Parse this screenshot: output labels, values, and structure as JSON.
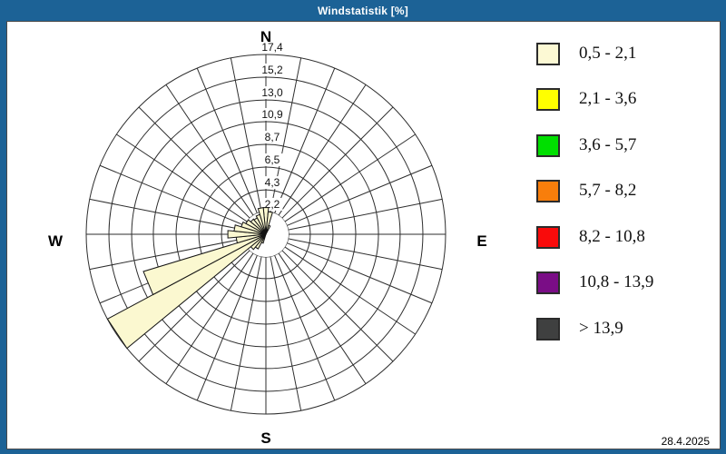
{
  "title_bar": {
    "title": "Windstatistik [%]"
  },
  "footer": {
    "date": "28.4.2025"
  },
  "compass": {
    "n": "N",
    "e": "E",
    "s": "S",
    "w": "W"
  },
  "colors": {
    "frame_blue": "#1C6296",
    "panel_bg": "#FFFFFF",
    "grid": "#2E2E2E",
    "petal_fill": "#FBF8D0",
    "petal_stroke": "#141414",
    "text": "#111111"
  },
  "legend": {
    "items": [
      {
        "label": "0,5 - 2,1",
        "color": "#FCF9D4"
      },
      {
        "label": "2,1 - 3,6",
        "color": "#FFFF00"
      },
      {
        "label": "3,6 - 5,7",
        "color": "#00DF00"
      },
      {
        "label": "5,7 - 8,2",
        "color": "#F87E0B"
      },
      {
        "label": "8,2 - 10,8",
        "color": "#F90B0B"
      },
      {
        "label": "10,8 - 13,9",
        "color": "#7A0D86"
      },
      {
        "label": "> 13,9",
        "color": "#3F4040"
      }
    ]
  },
  "chart_data": {
    "type": "wind_rose",
    "title": "Windstatistik [%]",
    "units": "%",
    "sectors": 32,
    "sector_width_deg": 11.25,
    "radial_max": 17.4,
    "radial_ticks": [
      {
        "label": "2,2",
        "value": 2.2
      },
      {
        "label": "4,3",
        "value": 4.3
      },
      {
        "label": "6,5",
        "value": 6.5
      },
      {
        "label": "8,7",
        "value": 8.7
      },
      {
        "label": "10,9",
        "value": 10.9
      },
      {
        "label": "13,0",
        "value": 13.0
      },
      {
        "label": "15,2",
        "value": 15.2
      },
      {
        "label": "17,4",
        "value": 17.4
      }
    ],
    "calm_circle_pct": 2.2,
    "speed_class_of_all_petals": "0,5 - 2,1",
    "petals": [
      {
        "dir_deg": 0.0,
        "value_pct": 2.6
      },
      {
        "dir_deg": 11.25,
        "value_pct": 2.2
      },
      {
        "dir_deg": 22.5,
        "value_pct": 0.9
      },
      {
        "dir_deg": 202.5,
        "value_pct": 0.9
      },
      {
        "dir_deg": 213.75,
        "value_pct": 1.6
      },
      {
        "dir_deg": 225.0,
        "value_pct": 1.9
      },
      {
        "dir_deg": 236.25,
        "value_pct": 17.4
      },
      {
        "dir_deg": 247.5,
        "value_pct": 12.4
      },
      {
        "dir_deg": 258.75,
        "value_pct": 2.9
      },
      {
        "dir_deg": 270.0,
        "value_pct": 3.7
      },
      {
        "dir_deg": 281.25,
        "value_pct": 3.1
      },
      {
        "dir_deg": 292.5,
        "value_pct": 2.5
      },
      {
        "dir_deg": 303.75,
        "value_pct": 2.2
      },
      {
        "dir_deg": 315.0,
        "value_pct": 1.9
      },
      {
        "dir_deg": 326.25,
        "value_pct": 1.8
      },
      {
        "dir_deg": 337.5,
        "value_pct": 2.0
      },
      {
        "dir_deg": 348.75,
        "value_pct": 2.6
      }
    ]
  }
}
